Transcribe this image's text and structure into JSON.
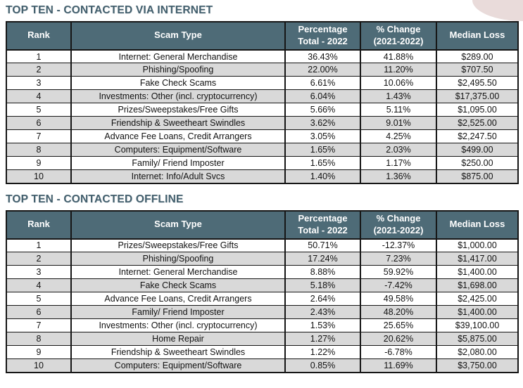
{
  "colors": {
    "header_bg": "#4e6b77",
    "title_color": "#44606e",
    "row_alt": "#d9d9d9",
    "border": "#161616",
    "corner_shape": "#e9dbda",
    "page_bg": "#ffffff"
  },
  "tables": [
    {
      "title": "TOP TEN - CONTACTED VIA INTERNET",
      "columns": [
        {
          "label_lines": [
            "Rank"
          ]
        },
        {
          "label_lines": [
            "Scam Type"
          ]
        },
        {
          "label_lines": [
            "Percentage",
            "Total - 2022"
          ]
        },
        {
          "label_lines": [
            "% Change",
            "(2021-2022)"
          ]
        },
        {
          "label_lines": [
            "Median Loss"
          ]
        }
      ],
      "rows": [
        [
          "1",
          "Internet: General Merchandise",
          "36.43%",
          "41.88%",
          "$289.00"
        ],
        [
          "2",
          "Phishing/Spoofing",
          "22.00%",
          "11.20%",
          "$707.50"
        ],
        [
          "3",
          "Fake Check Scams",
          "6.61%",
          "10.06%",
          "$2,495.50"
        ],
        [
          "4",
          "Investments: Other (incl. cryptocurrency)",
          "6.04%",
          "1.43%",
          "$17,375.00"
        ],
        [
          "5",
          "Prizes/Sweepstakes/Free Gifts",
          "5.66%",
          "5.11%",
          "$1,095.00"
        ],
        [
          "6",
          "Friendship & Sweetheart Swindles",
          "3.62%",
          "9.01%",
          "$2,525.00"
        ],
        [
          "7",
          "Advance Fee Loans, Credit Arrangers",
          "3.05%",
          "4.25%",
          "$2,247.50"
        ],
        [
          "8",
          "Computers: Equipment/Software",
          "1.65%",
          "2.03%",
          "$499.00"
        ],
        [
          "9",
          "Family/ Friend Imposter",
          "1.65%",
          "1.17%",
          "$250.00"
        ],
        [
          "10",
          "Internet: Info/Adult Svcs",
          "1.40%",
          "1.36%",
          "$875.00"
        ]
      ]
    },
    {
      "title": "TOP TEN - CONTACTED OFFLINE",
      "columns": [
        {
          "label_lines": [
            "Rank"
          ]
        },
        {
          "label_lines": [
            "Scam Type"
          ]
        },
        {
          "label_lines": [
            "Percentage",
            "Total - 2022"
          ]
        },
        {
          "label_lines": [
            "% Change",
            "(2021-2022)"
          ]
        },
        {
          "label_lines": [
            "Median Loss"
          ]
        }
      ],
      "rows": [
        [
          "1",
          "Prizes/Sweepstakes/Free Gifts",
          "50.71%",
          "-12.37%",
          "$1,000.00"
        ],
        [
          "2",
          "Phishing/Spoofing",
          "17.24%",
          "7.23%",
          "$1,417.00"
        ],
        [
          "3",
          "Internet: General Merchandise",
          "8.88%",
          "59.92%",
          "$1,400.00"
        ],
        [
          "4",
          "Fake Check Scams",
          "5.18%",
          "-7.42%",
          "$1,698.00"
        ],
        [
          "5",
          "Advance Fee Loans, Credit Arrangers",
          "2.64%",
          "49.58%",
          "$2,425.00"
        ],
        [
          "6",
          "Family/ Friend Imposter",
          "2.43%",
          "48.20%",
          "$1,400.00"
        ],
        [
          "7",
          "Investments: Other (incl. cryptocurrency)",
          "1.53%",
          "25.65%",
          "$39,100.00"
        ],
        [
          "8",
          "Home Repair",
          "1.27%",
          "20.62%",
          "$5,875.00"
        ],
        [
          "9",
          "Friendship & Sweetheart Swindles",
          "1.22%",
          "-6.78%",
          "$2,080.00"
        ],
        [
          "10",
          "Computers: Equipment/Software",
          "0.85%",
          "11.69%",
          "$3,750.00"
        ]
      ]
    }
  ]
}
